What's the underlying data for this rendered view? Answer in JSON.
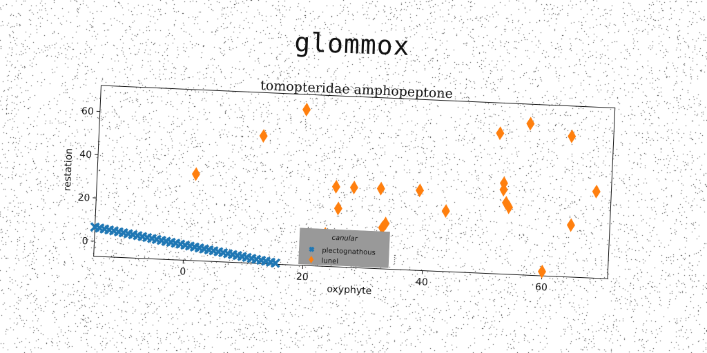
{
  "suptitle": "glommox",
  "chart_data": {
    "type": "scatter",
    "title": "tomopteridae amphopeptone",
    "xlabel": "oxyphyte",
    "ylabel": "restation",
    "xlim": [
      -15,
      71
    ],
    "ylim": [
      -7,
      72
    ],
    "xticks": [
      0,
      20,
      40,
      60
    ],
    "yticks": [
      0,
      20,
      40,
      60
    ],
    "grid": false,
    "legend": {
      "title": "canular",
      "placement": "lower center",
      "background": "#999999"
    },
    "series": [
      {
        "name": "plectognathous",
        "marker": "X",
        "color": "#1f77b4",
        "x": [
          -15,
          -14.2,
          -13.4,
          -12.6,
          -11.8,
          -11,
          -10.2,
          -9.4,
          -8.6,
          -7.8,
          -7,
          -6.2,
          -5.4,
          -4.6,
          -3.8,
          -3,
          -2.2,
          -1.4,
          -0.6,
          0.2,
          1,
          1.8,
          2.6,
          3.4,
          4.2,
          5,
          5.8,
          6.6,
          7.4,
          8.2,
          9,
          9.8,
          10.6,
          11.4,
          12.2,
          13,
          13.8,
          14.6,
          15.4
        ],
        "y": [
          6.5,
          6.16,
          5.82,
          5.47,
          5.13,
          4.79,
          4.45,
          4.11,
          3.77,
          3.42,
          3.08,
          2.74,
          2.4,
          2.06,
          1.72,
          1.37,
          1.03,
          0.69,
          0.35,
          0.01,
          -0.33,
          -0.68,
          -1.02,
          -1.36,
          -1.7,
          -2.04,
          -2.38,
          -2.73,
          -3.07,
          -3.41,
          -3.75,
          -4.09,
          -4.43,
          -4.78,
          -5.12,
          -5.46,
          -5.8,
          -6.14,
          -6.48
        ]
      },
      {
        "name": "lunel",
        "marker": "d",
        "color": "#ff7f0e",
        "x": [
          1.5,
          12.5,
          19.5,
          23.5,
          25,
          25.5,
          28,
          32.5,
          33,
          33.5,
          39,
          43.5,
          52,
          53,
          53,
          53.5,
          54,
          57,
          60,
          64,
          64.5,
          68.5
        ],
        "y": [
          33,
          52,
          65,
          8,
          30,
          20,
          30,
          30,
          12,
          14,
          30,
          21,
          58,
          35,
          32,
          26,
          24,
          63,
          -5,
          58,
          17,
          33
        ]
      }
    ]
  }
}
